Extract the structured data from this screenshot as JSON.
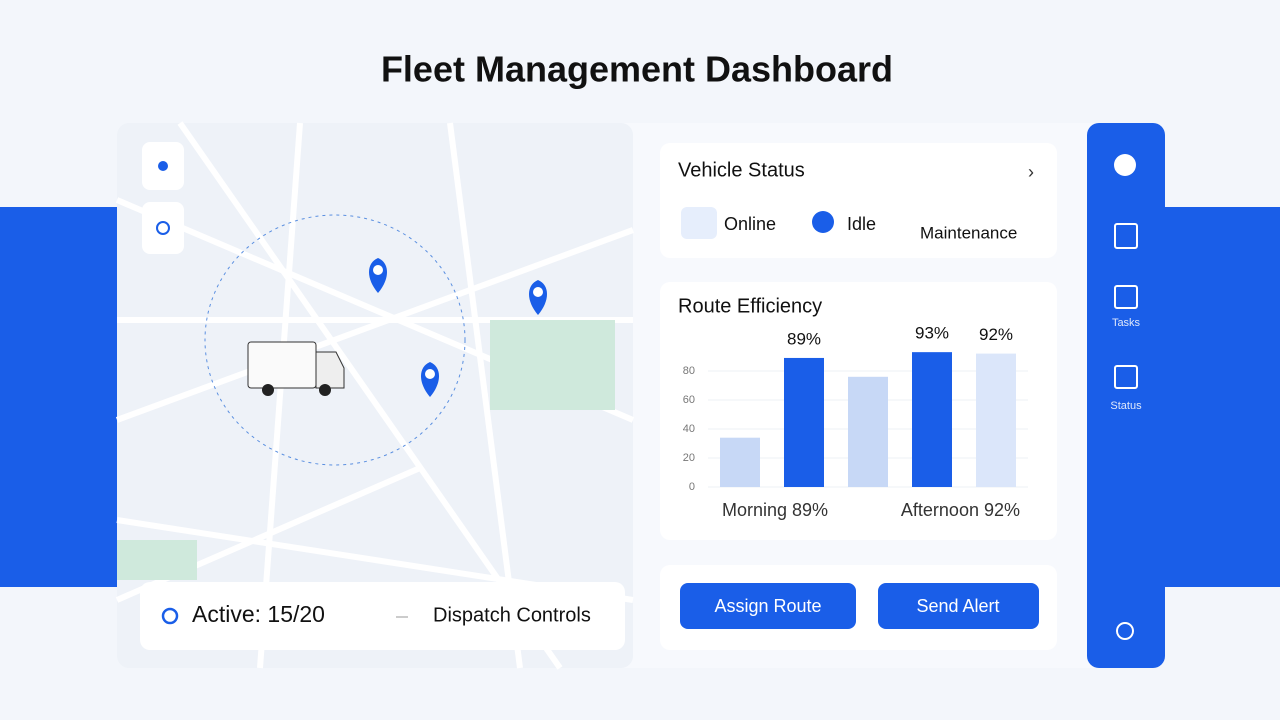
{
  "header": {
    "title": "Fleet Management Dashboard"
  },
  "map": {
    "status": "Active: 15/20",
    "dispatch": "Dispatch Controls"
  },
  "vehicle_status": {
    "title": "Vehicle Status",
    "items": [
      "Online",
      "Idle",
      "Maintenance"
    ]
  },
  "route_efficiency": {
    "title": "Route Efficiency",
    "type": "bar",
    "values": [
      34,
      89,
      76,
      93,
      92
    ],
    "value_labels": [
      null,
      "89%",
      null,
      "93%",
      "92%"
    ],
    "colors": [
      "#c7d8f6",
      "#1a5ee8",
      "#c7d8f6",
      "#1a5ee8",
      "#dbe6fa"
    ],
    "ylim": [
      0,
      100
    ],
    "yticks": [
      0,
      20,
      40,
      60,
      80
    ],
    "grid": true,
    "footer": [
      "Morning 89%",
      "Afternoon 92%"
    ]
  },
  "actions": [
    "Assign Route",
    "Send Alert"
  ],
  "sidebar": [
    "Tasks",
    "Status"
  ]
}
